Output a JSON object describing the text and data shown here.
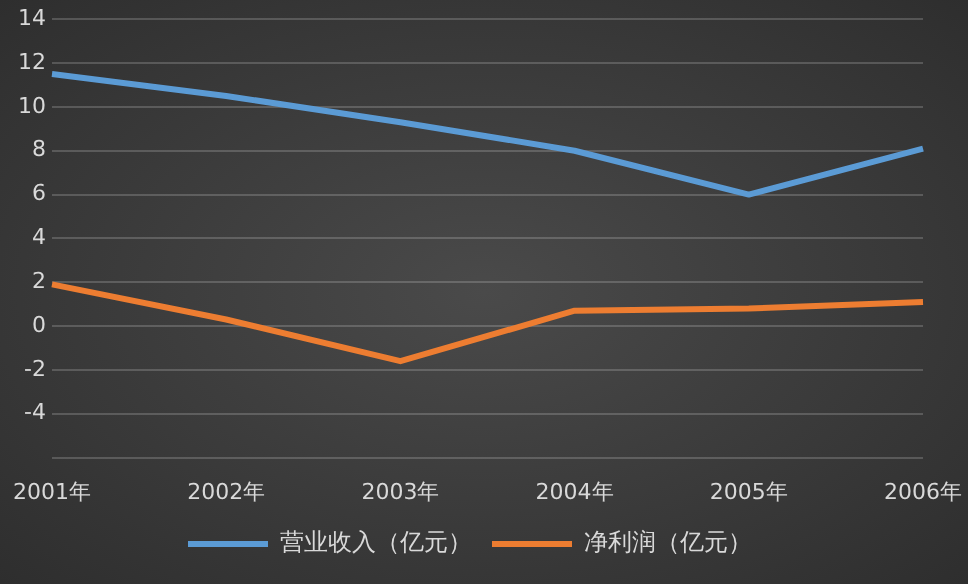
{
  "chart_data": {
    "type": "line",
    "categories": [
      "2001年",
      "2002年",
      "2003年",
      "2004年",
      "2005年",
      "2006年"
    ],
    "series": [
      {
        "name": "营业收入（亿元）",
        "color": "#5b9bd5",
        "values": [
          11.5,
          10.5,
          9.3,
          8.0,
          6.0,
          8.1
        ]
      },
      {
        "name": "净利润（亿元）",
        "color": "#ed7d31",
        "values": [
          1.9,
          0.3,
          -1.6,
          0.7,
          0.8,
          1.1
        ]
      }
    ],
    "ylim": [
      -6,
      14
    ],
    "yticks": [
      {
        "value": -6,
        "label": null
      },
      -4,
      -2,
      0,
      2,
      4,
      6,
      8,
      10,
      12,
      14
    ],
    "grid": "y",
    "legend": "bottom",
    "marker": "none",
    "line_style": "solid"
  }
}
